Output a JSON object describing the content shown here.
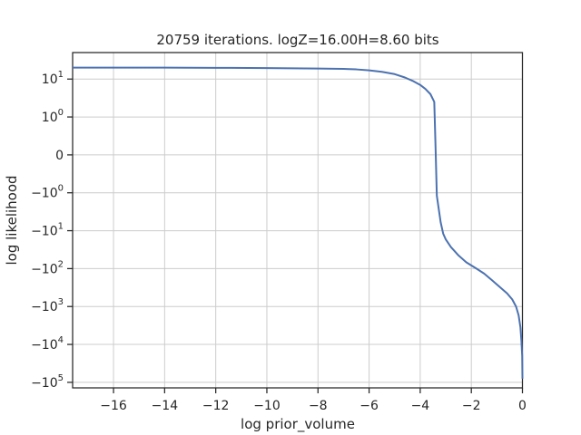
{
  "chart_data": {
    "type": "line",
    "title": "20759 iterations. logZ=16.00H=8.60 bits",
    "xlabel": "log prior_volume",
    "ylabel": "log likelihood",
    "xlim": [
      -17.6,
      0
    ],
    "y_scale": "symlog",
    "y_linthresh": 1,
    "ylim": [
      -140000,
      50
    ],
    "grid": true,
    "x_ticks": [
      {
        "value": -16,
        "label": "−16"
      },
      {
        "value": -14,
        "label": "−14"
      },
      {
        "value": -12,
        "label": "−12"
      },
      {
        "value": -10,
        "label": "−10"
      },
      {
        "value": -8,
        "label": "−8"
      },
      {
        "value": -6,
        "label": "−6"
      },
      {
        "value": -4,
        "label": "−4"
      },
      {
        "value": -2,
        "label": "−2"
      },
      {
        "value": 0,
        "label": "0"
      }
    ],
    "y_ticks": [
      {
        "value": 10,
        "label": "10",
        "exp": "1"
      },
      {
        "value": 1,
        "label": "10",
        "exp": "0"
      },
      {
        "value": 0,
        "label": "0",
        "exp": ""
      },
      {
        "value": -1,
        "label": "−10",
        "exp": "0"
      },
      {
        "value": -10,
        "label": "−10",
        "exp": "1"
      },
      {
        "value": -100,
        "label": "−10",
        "exp": "2"
      },
      {
        "value": -1000,
        "label": "−10",
        "exp": "3"
      },
      {
        "value": -10000,
        "label": "−10",
        "exp": "4"
      },
      {
        "value": -100000,
        "label": "−10",
        "exp": "5"
      }
    ],
    "series": [
      {
        "color": "#4c72b0",
        "x": [
          -17.6,
          -14,
          -12,
          -10,
          -8,
          -7,
          -6.5,
          -6,
          -5.5,
          -5,
          -4.6,
          -4.3,
          -4.0,
          -3.8,
          -3.6,
          -3.45,
          -3.4,
          -3.35,
          -3.2,
          -3.1,
          -3.0,
          -2.8,
          -2.5,
          -2.2,
          -1.8,
          -1.5,
          -1.2,
          -0.9,
          -0.6,
          -0.4,
          -0.25,
          -0.15,
          -0.08,
          -0.04,
          -0.01,
          0
        ],
        "y": [
          20,
          20,
          19.8,
          19.5,
          19,
          18.5,
          18,
          17,
          15.5,
          13.5,
          11,
          9,
          7,
          5.5,
          4,
          2.5,
          0.2,
          -1.2,
          -6,
          -12,
          -17,
          -27,
          -45,
          -68,
          -100,
          -135,
          -200,
          -300,
          -450,
          -650,
          -1000,
          -1700,
          -3500,
          -8000,
          -20000,
          -80000
        ]
      }
    ]
  }
}
